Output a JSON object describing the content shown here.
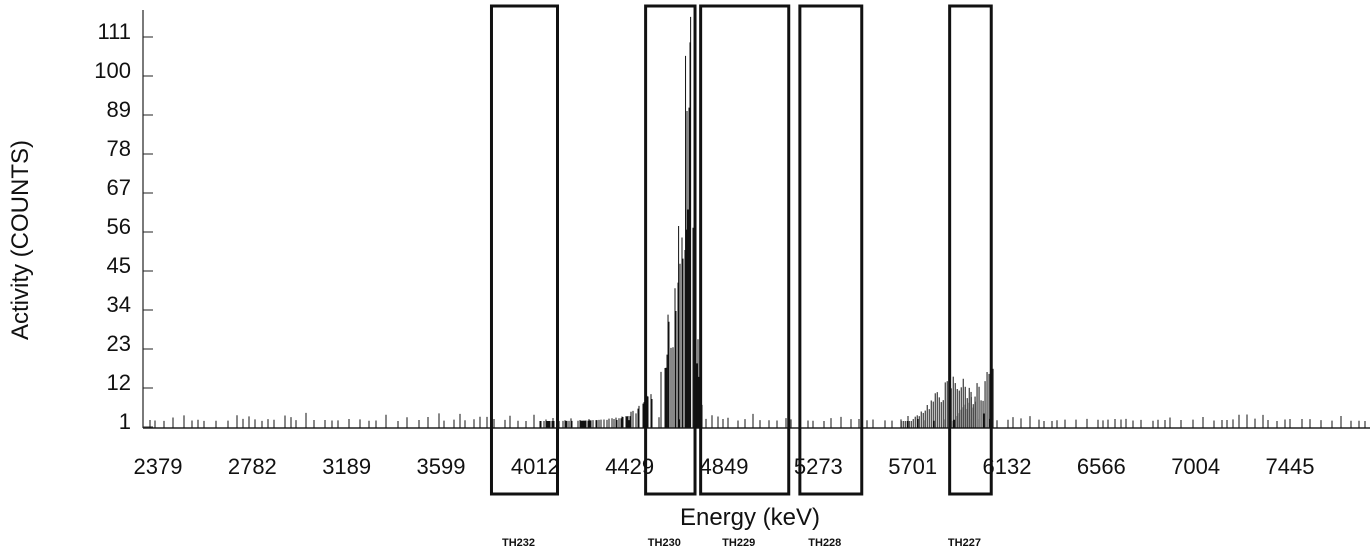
{
  "chart_data": {
    "type": "bar",
    "xlabel": "Energy (keV)",
    "ylabel": "Activity (COUNTS)",
    "y_ticks": [
      "1",
      "12",
      "23",
      "34",
      "45",
      "56",
      "67",
      "78",
      "89",
      "100",
      "111"
    ],
    "x_ticks": [
      "2379",
      "2782",
      "3189",
      "3599",
      "4012",
      "4429",
      "4849",
      "5273",
      "5701",
      "6132",
      "6566",
      "7004",
      "7445"
    ],
    "xlim": [
      2379,
      7445
    ],
    "ylim": [
      1,
      111
    ],
    "grid": false,
    "regions": [
      {
        "label": "TH232",
        "start": 3820,
        "end": 4110
      },
      {
        "label": "TH230",
        "start": 4500,
        "end": 4720
      },
      {
        "label": "TH229",
        "start": 4745,
        "end": 5140
      },
      {
        "label": "TH228",
        "start": 5190,
        "end": 5470
      },
      {
        "label": "TH227",
        "start": 5870,
        "end": 6060
      }
    ],
    "peaks": [
      {
        "x": 4700,
        "y": 115
      },
      {
        "x": 4680,
        "y": 104
      },
      {
        "x": 4650,
        "y": 56
      },
      {
        "x": 4600,
        "y": 31
      },
      {
        "x": 5900,
        "y": 15
      },
      {
        "x": 6050,
        "y": 17
      }
    ]
  }
}
